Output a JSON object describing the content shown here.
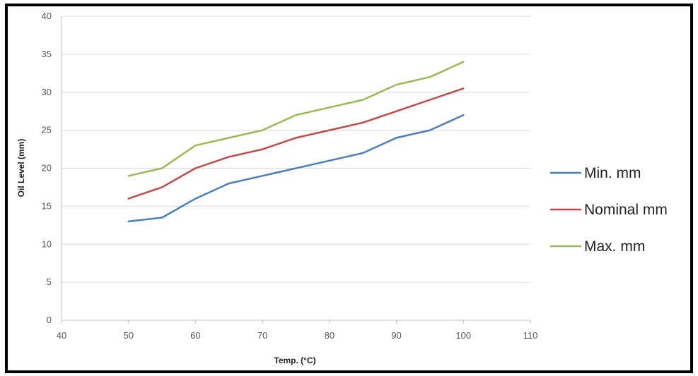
{
  "chart_data": {
    "type": "line",
    "xlabel": "Temp. (°C)",
    "ylabel": "Oil Level (mm)",
    "xlim": [
      40,
      110
    ],
    "ylim": [
      0,
      40
    ],
    "xticks": [
      "40",
      "50",
      "60",
      "70",
      "80",
      "90",
      "100",
      "110"
    ],
    "yticks": [
      "0",
      "5",
      "10",
      "15",
      "20",
      "25",
      "30",
      "35",
      "40"
    ],
    "grid": "horizontal",
    "legend_position": "right",
    "x": [
      50,
      55,
      60,
      65,
      70,
      75,
      80,
      85,
      90,
      95,
      100
    ],
    "series": [
      {
        "name": "Min.  mm",
        "color": "#4a7ebb",
        "values": [
          13,
          13.5,
          16,
          18,
          19,
          20,
          21,
          22,
          24,
          25,
          27
        ]
      },
      {
        "name": "Nominal mm",
        "color": "#be4b48",
        "values": [
          16,
          17.5,
          20,
          21.5,
          22.5,
          24,
          25,
          26,
          27.5,
          29,
          30.5
        ]
      },
      {
        "name": "Max. mm",
        "color": "#98b954",
        "values": [
          19,
          20,
          23,
          24,
          25,
          27,
          28,
          29,
          31,
          32,
          34
        ]
      }
    ]
  }
}
